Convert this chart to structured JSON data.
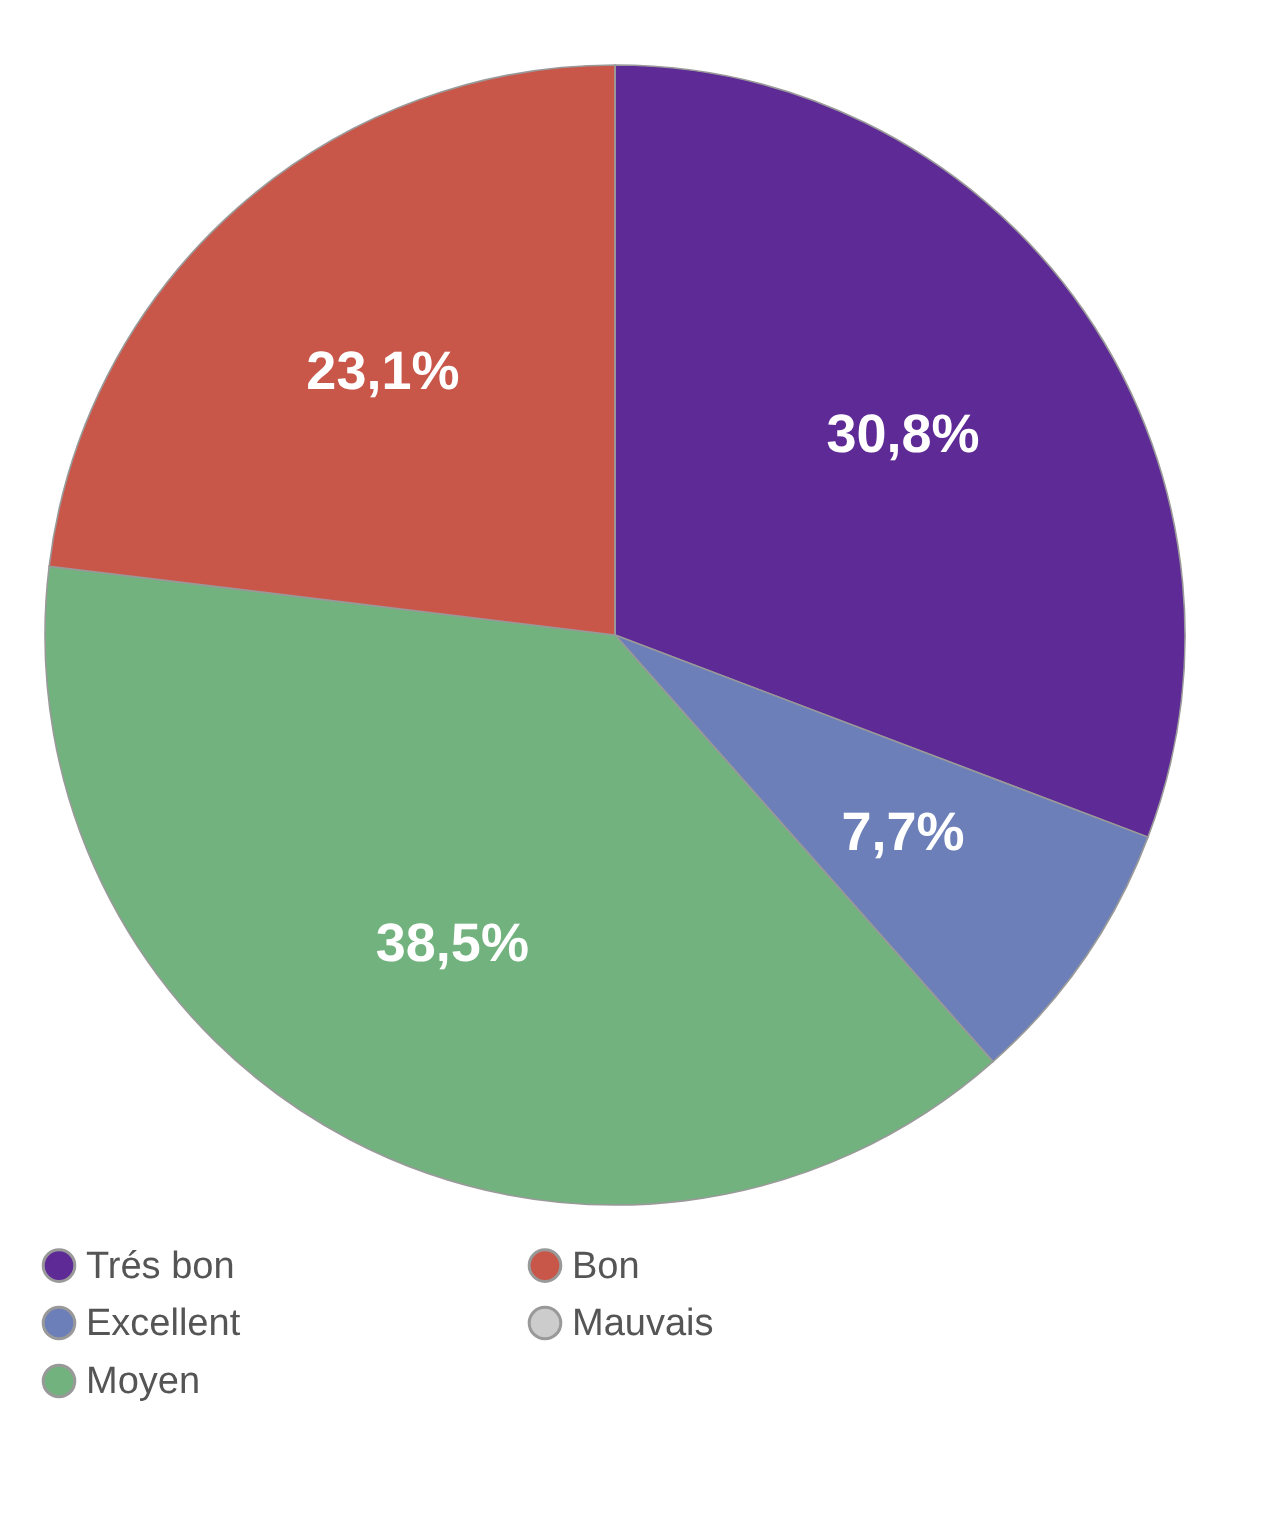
{
  "chart_data": {
    "type": "pie",
    "categories": [
      "Trés bon",
      "Excellent",
      "Moyen",
      "Bon",
      "Mauvais"
    ],
    "values": [
      30.8,
      7.7,
      38.5,
      23.1,
      0
    ],
    "colors": [
      "#5e2a96",
      "#6c7fb8",
      "#72b27e",
      "#c8574a",
      "#cccccc"
    ],
    "value_labels": [
      "30,8%",
      "7,7%",
      "38,5%",
      "23,1%",
      null
    ],
    "legend": "bottom"
  }
}
